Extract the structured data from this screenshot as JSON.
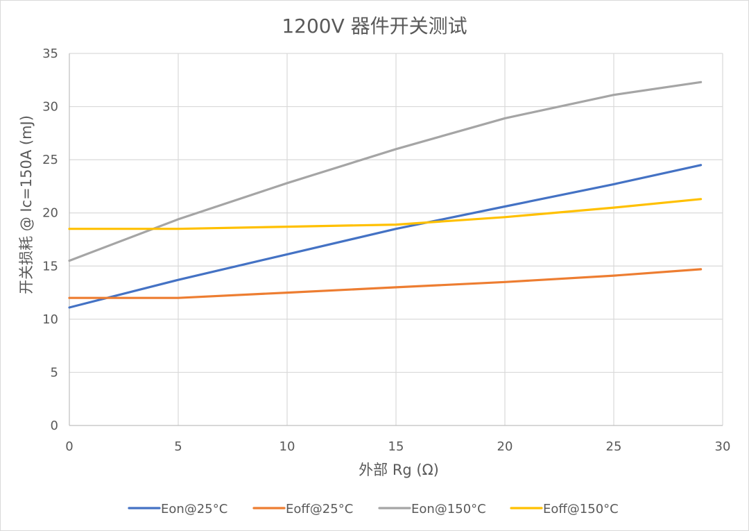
{
  "chart_data": {
    "type": "line",
    "title": "1200V 器件开关测试",
    "xlabel": "外部 Rg (Ω)",
    "ylabel": "开关损耗 @ Ic=150A (mJ)",
    "xlim": [
      0,
      30
    ],
    "ylim": [
      0,
      35
    ],
    "x_ticks": [
      0,
      5,
      10,
      15,
      20,
      25,
      30
    ],
    "y_ticks": [
      0,
      5,
      10,
      15,
      20,
      25,
      30,
      35
    ],
    "grid": true,
    "legend_position": "bottom",
    "x": [
      0,
      5,
      10,
      15,
      20,
      25,
      29
    ],
    "series": [
      {
        "name": "Eon@25°C",
        "color": "#4472C4",
        "values": [
          11.1,
          13.7,
          16.1,
          18.5,
          20.6,
          22.7,
          24.5
        ]
      },
      {
        "name": "Eoff@25°C",
        "color": "#ED7D31",
        "values": [
          12.0,
          12.0,
          12.5,
          13.0,
          13.5,
          14.1,
          14.7
        ]
      },
      {
        "name": "Eon@150°C",
        "color": "#A5A5A5",
        "values": [
          15.5,
          19.4,
          22.8,
          26.0,
          28.9,
          31.1,
          32.3
        ]
      },
      {
        "name": "Eoff@150°C",
        "color": "#FFC000",
        "values": [
          18.5,
          18.5,
          18.7,
          18.9,
          19.6,
          20.5,
          21.3
        ]
      }
    ]
  }
}
